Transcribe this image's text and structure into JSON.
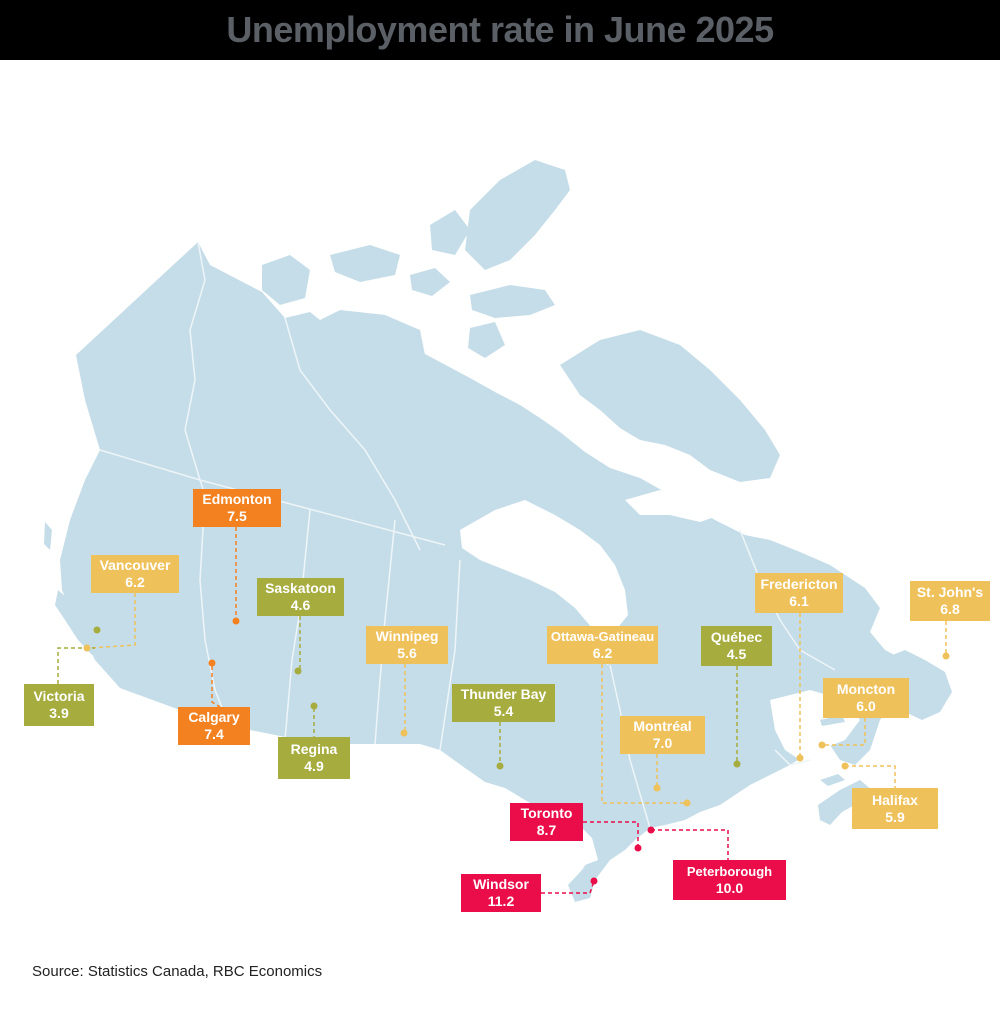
{
  "title": "Unemployment rate in June 2025",
  "source": "Source: Statistics Canada, RBC Economics",
  "colors": {
    "land": "#c5dde8",
    "low": "#a6ac3e",
    "mid": "#efc15a",
    "high": "#f38120",
    "very_high": "#ea0d4a"
  },
  "cities": [
    {
      "name": "Edmonton",
      "value": "7.5",
      "tier": "high"
    },
    {
      "name": "Vancouver",
      "value": "6.2",
      "tier": "mid"
    },
    {
      "name": "Saskatoon",
      "value": "4.6",
      "tier": "low"
    },
    {
      "name": "Winnipeg",
      "value": "5.6",
      "tier": "mid"
    },
    {
      "name": "Victoria",
      "value": "3.9",
      "tier": "low"
    },
    {
      "name": "Calgary",
      "value": "7.4",
      "tier": "high"
    },
    {
      "name": "Regina",
      "value": "4.9",
      "tier": "low"
    },
    {
      "name": "Thunder Bay",
      "value": "5.4",
      "tier": "low"
    },
    {
      "name": "Ottawa-Gatineau",
      "value": "6.2",
      "tier": "mid"
    },
    {
      "name": "Québec",
      "value": "4.5",
      "tier": "low"
    },
    {
      "name": "Montréal",
      "value": "7.0",
      "tier": "mid"
    },
    {
      "name": "Fredericton",
      "value": "6.1",
      "tier": "mid"
    },
    {
      "name": "St. John's",
      "value": "6.8",
      "tier": "mid"
    },
    {
      "name": "Moncton",
      "value": "6.0",
      "tier": "mid"
    },
    {
      "name": "Halifax",
      "value": "5.9",
      "tier": "mid"
    },
    {
      "name": "Toronto",
      "value": "8.7",
      "tier": "very_high"
    },
    {
      "name": "Peterborough",
      "value": "10.0",
      "tier": "very_high"
    },
    {
      "name": "Windsor",
      "value": "11.2",
      "tier": "very_high"
    }
  ]
}
